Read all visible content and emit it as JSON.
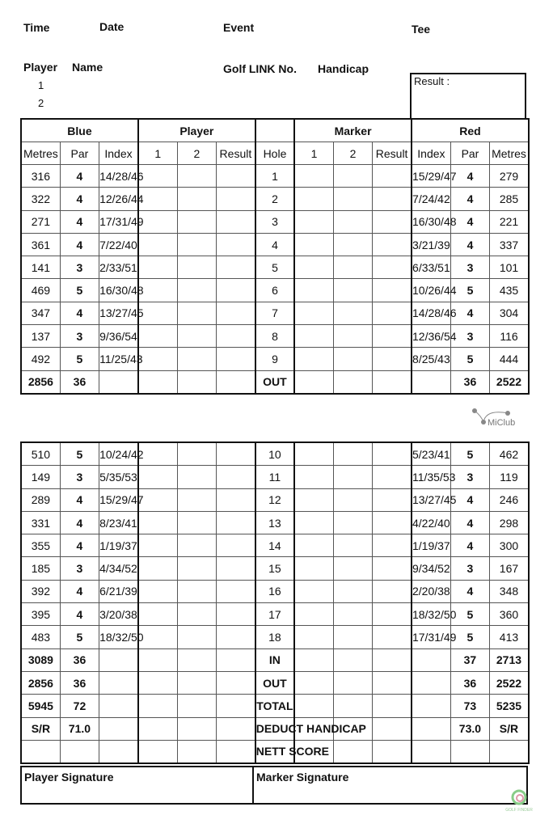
{
  "header": {
    "time": "Time",
    "date": "Date",
    "event": "Event",
    "tee": "Tee",
    "player": "Player",
    "name": "Name",
    "golf_link": "Golf LINK No.",
    "handicap": "Handicap",
    "player_nums": [
      "1",
      "2"
    ],
    "result_label": "Result :"
  },
  "table_headers": {
    "groups": [
      "Blue",
      "Player",
      "",
      "Marker",
      "Red"
    ],
    "columns": [
      "Metres",
      "Par",
      "Index",
      "1",
      "2",
      "Result",
      "Hole",
      "1",
      "2",
      "Result",
      "Index",
      "Par",
      "Metres"
    ]
  },
  "front_nine": [
    {
      "blue_m": "316",
      "blue_par": "4",
      "blue_idx": "14/28/46",
      "hole": "1",
      "red_idx": "15/29/47",
      "red_par": "4",
      "red_m": "279"
    },
    {
      "blue_m": "322",
      "blue_par": "4",
      "blue_idx": "12/26/44",
      "hole": "2",
      "red_idx": "7/24/42",
      "red_par": "4",
      "red_m": "285"
    },
    {
      "blue_m": "271",
      "blue_par": "4",
      "blue_idx": "17/31/49",
      "hole": "3",
      "red_idx": "16/30/48",
      "red_par": "4",
      "red_m": "221"
    },
    {
      "blue_m": "361",
      "blue_par": "4",
      "blue_idx": "7/22/40",
      "hole": "4",
      "red_idx": "3/21/39",
      "red_par": "4",
      "red_m": "337"
    },
    {
      "blue_m": "141",
      "blue_par": "3",
      "blue_idx": "2/33/51",
      "hole": "5",
      "red_idx": "6/33/51",
      "red_par": "3",
      "red_m": "101"
    },
    {
      "blue_m": "469",
      "blue_par": "5",
      "blue_idx": "16/30/48",
      "hole": "6",
      "red_idx": "10/26/44",
      "red_par": "5",
      "red_m": "435"
    },
    {
      "blue_m": "347",
      "blue_par": "4",
      "blue_idx": "13/27/45",
      "hole": "7",
      "red_idx": "14/28/46",
      "red_par": "4",
      "red_m": "304"
    },
    {
      "blue_m": "137",
      "blue_par": "3",
      "blue_idx": "9/36/54",
      "hole": "8",
      "red_idx": "12/36/54",
      "red_par": "3",
      "red_m": "116"
    },
    {
      "blue_m": "492",
      "blue_par": "5",
      "blue_idx": "11/25/43",
      "hole": "9",
      "red_idx": "8/25/43",
      "red_par": "5",
      "red_m": "444"
    }
  ],
  "front_total": {
    "blue_m": "2856",
    "blue_par": "36",
    "blue_idx": "",
    "hole": "OUT",
    "red_idx": "",
    "red_par": "36",
    "red_m": "2522"
  },
  "back_nine": [
    {
      "blue_m": "510",
      "blue_par": "5",
      "blue_idx": "10/24/42",
      "hole": "10",
      "red_idx": "5/23/41",
      "red_par": "5",
      "red_m": "462"
    },
    {
      "blue_m": "149",
      "blue_par": "3",
      "blue_idx": "5/35/53",
      "hole": "11",
      "red_idx": "11/35/53",
      "red_par": "3",
      "red_m": "119"
    },
    {
      "blue_m": "289",
      "blue_par": "4",
      "blue_idx": "15/29/47",
      "hole": "12",
      "red_idx": "13/27/45",
      "red_par": "4",
      "red_m": "246"
    },
    {
      "blue_m": "331",
      "blue_par": "4",
      "blue_idx": "8/23/41",
      "hole": "13",
      "red_idx": "4/22/40",
      "red_par": "4",
      "red_m": "298"
    },
    {
      "blue_m": "355",
      "blue_par": "4",
      "blue_idx": "1/19/37",
      "hole": "14",
      "red_idx": "1/19/37",
      "red_par": "4",
      "red_m": "300"
    },
    {
      "blue_m": "185",
      "blue_par": "3",
      "blue_idx": "4/34/52",
      "hole": "15",
      "red_idx": "9/34/52",
      "red_par": "3",
      "red_m": "167"
    },
    {
      "blue_m": "392",
      "blue_par": "4",
      "blue_idx": "6/21/39",
      "hole": "16",
      "red_idx": "2/20/38",
      "red_par": "4",
      "red_m": "348"
    },
    {
      "blue_m": "395",
      "blue_par": "4",
      "blue_idx": "3/20/38",
      "hole": "17",
      "red_idx": "18/32/50",
      "red_par": "5",
      "red_m": "360"
    },
    {
      "blue_m": "483",
      "blue_par": "5",
      "blue_idx": "18/32/50",
      "hole": "18",
      "red_idx": "17/31/49",
      "red_par": "5",
      "red_m": "413"
    }
  ],
  "summary": [
    {
      "blue_m": "3089",
      "blue_par": "36",
      "blue_idx": "",
      "hole": "IN",
      "red_idx": "",
      "red_par": "37",
      "red_m": "2713"
    },
    {
      "blue_m": "2856",
      "blue_par": "36",
      "blue_idx": "",
      "hole": "OUT",
      "red_idx": "",
      "red_par": "36",
      "red_m": "2522"
    },
    {
      "blue_m": "5945",
      "blue_par": "72",
      "blue_idx": "",
      "hole": "TOTAL",
      "red_idx": "",
      "red_par": "73",
      "red_m": "5235"
    },
    {
      "blue_m": "S/R",
      "blue_par": "71.0",
      "blue_idx": "",
      "hole": "DEDUCT HANDICAP",
      "red_idx": "",
      "red_par": "73.0",
      "red_m": "S/R"
    },
    {
      "blue_m": "",
      "blue_par": "",
      "blue_idx": "",
      "hole": "NETT SCORE",
      "red_idx": "",
      "red_par": "",
      "red_m": ""
    }
  ],
  "signatures": {
    "player": "Player Signature",
    "marker": "Marker Signature"
  },
  "logos": {
    "miclub": "MiClub",
    "golf_finder": "GOLF FINDER"
  }
}
